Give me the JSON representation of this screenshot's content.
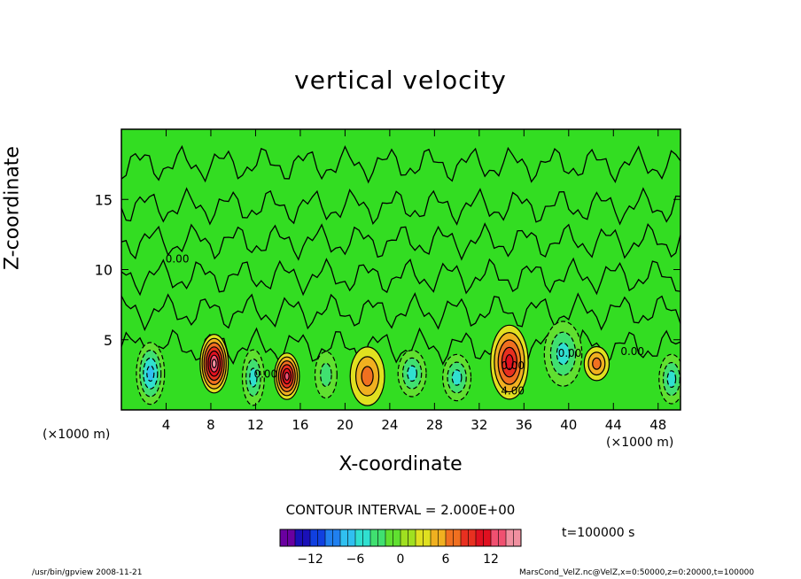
{
  "chart_data": {
    "type": "heatmap",
    "title": "vertical velocity",
    "xlabel": "X-coordinate",
    "ylabel": "Z-coordinate",
    "x_unit": "(×1000 m)",
    "y_unit": "(×1000 m)",
    "xlim": [
      0,
      50
    ],
    "ylim": [
      0,
      20
    ],
    "x_ticks": [
      4,
      8,
      12,
      16,
      20,
      24,
      28,
      32,
      36,
      40,
      44,
      48
    ],
    "y_ticks": [
      5,
      10,
      15
    ],
    "contour_interval_text": "CONTOUR INTERVAL = 2.000E+00",
    "contour_labels": [
      "0.00",
      "0.00",
      "0.00",
      "0.00",
      "4.00",
      "0.00"
    ],
    "colorbar": {
      "range": [
        -16,
        16
      ],
      "ticks": [
        -12,
        -6,
        0,
        6,
        12
      ],
      "colors": [
        "#6a00a0",
        "#1a10b8",
        "#1040e0",
        "#2080f0",
        "#30c0f0",
        "#30e0d0",
        "#40e070",
        "#60e030",
        "#a0e020",
        "#e0e020",
        "#f0b020",
        "#f07020",
        "#e83020",
        "#e01020",
        "#f05070",
        "#f090a0"
      ]
    },
    "cells": [
      {
        "x": 8.3,
        "z": 3.3,
        "w": 0.9,
        "h": 1.9,
        "value": 14
      },
      {
        "x": 14.8,
        "z": 2.4,
        "w": 0.8,
        "h": 1.5,
        "value": 12
      },
      {
        "x": 34.7,
        "z": 3.4,
        "w": 1.2,
        "h": 2.4,
        "value": 10
      },
      {
        "x": 22.0,
        "z": 2.4,
        "w": 1.1,
        "h": 1.9,
        "value": 6
      },
      {
        "x": 42.5,
        "z": 3.3,
        "w": 0.8,
        "h": 1.1,
        "value": 6
      },
      {
        "x": 2.6,
        "z": 2.6,
        "w": 0.9,
        "h": 2.0,
        "value": -8
      },
      {
        "x": 11.8,
        "z": 2.3,
        "w": 0.7,
        "h": 1.8,
        "value": -6
      },
      {
        "x": 26.0,
        "z": 2.6,
        "w": 0.9,
        "h": 1.5,
        "value": -6
      },
      {
        "x": 30.0,
        "z": 2.3,
        "w": 0.9,
        "h": 1.5,
        "value": -6
      },
      {
        "x": 39.5,
        "z": 4.0,
        "w": 1.2,
        "h": 2.1,
        "value": -6
      },
      {
        "x": 49.2,
        "z": 2.2,
        "w": 0.8,
        "h": 1.6,
        "value": -6
      },
      {
        "x": 18.3,
        "z": 2.5,
        "w": 0.7,
        "h": 1.5,
        "value": -4
      }
    ],
    "time_label": "t=100000 s"
  },
  "footer": {
    "left": "/usr/bin/gpview   2008-11-21",
    "right": "MarsCond_VelZ.nc@VelZ,x=0:50000,z=0:20000,t=100000"
  },
  "colors": {
    "background_field": "#33dd22",
    "axes": "#000000"
  }
}
